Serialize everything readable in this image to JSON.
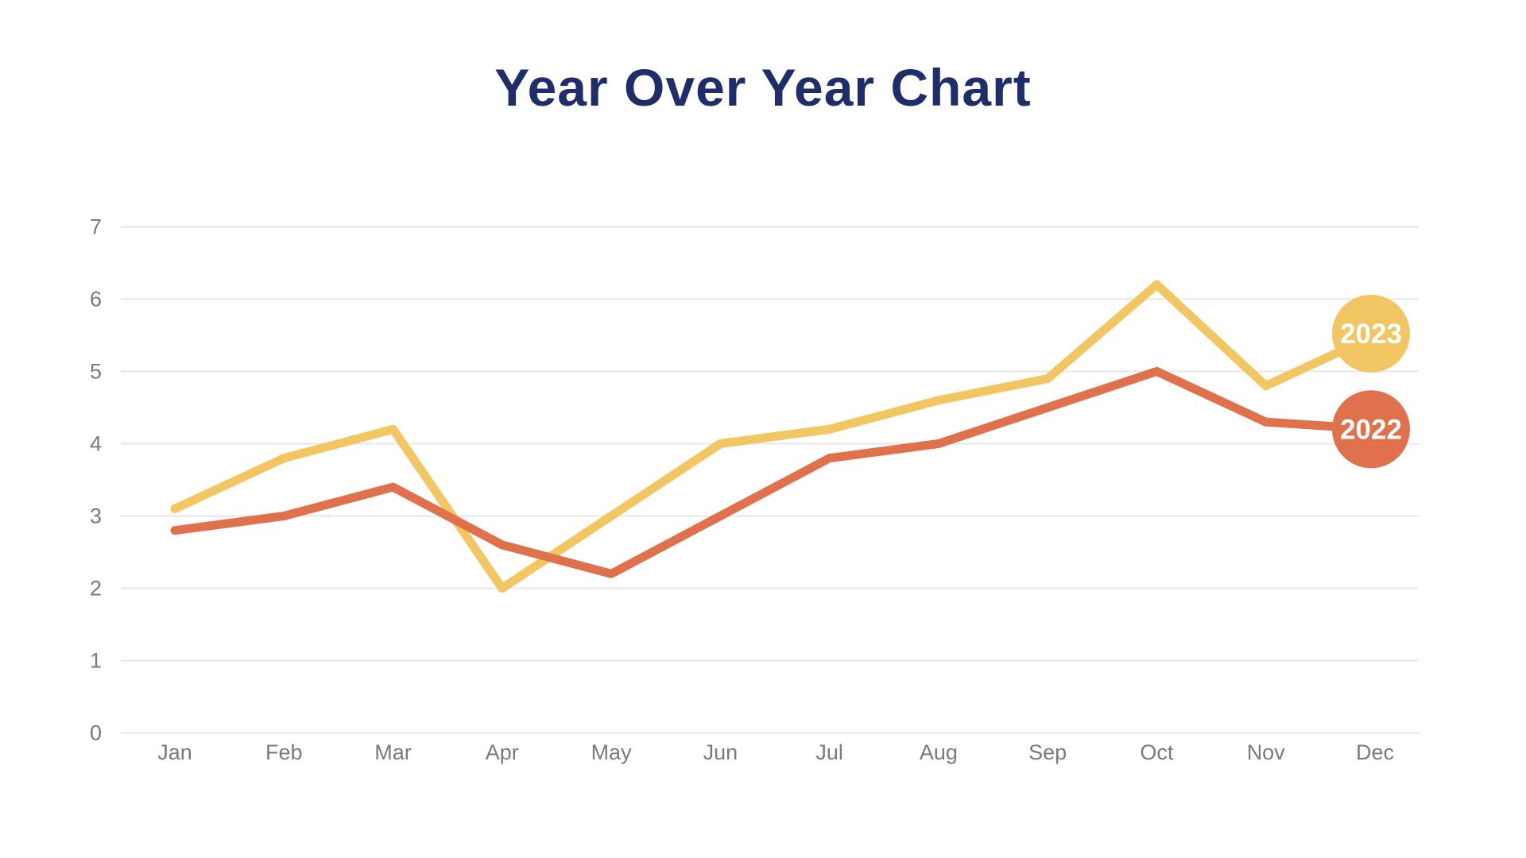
{
  "title": "Year Over Year Chart",
  "colors": {
    "background": "#FFFFFF",
    "title_text": "#1F2E6B",
    "axis_label": "#7A7A7A",
    "gridline": "#E7E7E7",
    "badge_text": "#FFFFFF"
  },
  "chart_data": {
    "type": "line",
    "title": "Year Over Year Chart",
    "categories": [
      "Jan",
      "Feb",
      "Mar",
      "Apr",
      "May",
      "Jun",
      "Jul",
      "Aug",
      "Sep",
      "Oct",
      "Nov",
      "Dec"
    ],
    "series": [
      {
        "name": "2023",
        "color": "#F2C763",
        "values": [
          3.1,
          3.8,
          4.2,
          2.0,
          3.0,
          4.0,
          4.2,
          4.6,
          4.9,
          6.2,
          4.8,
          5.5
        ]
      },
      {
        "name": "2022",
        "color": "#E0714D",
        "values": [
          2.8,
          3.0,
          3.4,
          2.6,
          2.2,
          3.0,
          3.8,
          4.0,
          4.5,
          5.0,
          4.3,
          4.2
        ]
      }
    ],
    "xlabel": "",
    "ylabel": "",
    "ylim": [
      0,
      7
    ],
    "yticks": [
      0,
      1,
      2,
      3,
      4,
      5,
      6,
      7
    ],
    "grid": "horizontal",
    "legend": "end-of-line-badges"
  }
}
